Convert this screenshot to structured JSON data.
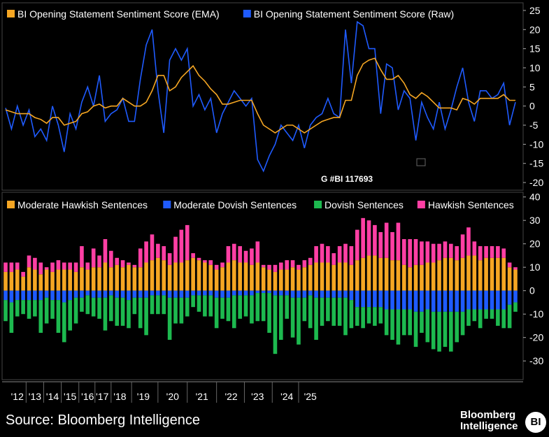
{
  "chart_data": [
    {
      "type": "line",
      "series": [
        {
          "name": "BI Opening Statement Sentiment Score (EMA)",
          "color": "#f5a623",
          "values": [
            -1,
            -1.5,
            -2,
            -2,
            -2,
            -3,
            -3.5,
            -4.5,
            -3,
            -3,
            -5,
            -4.5,
            -4,
            -2,
            -1.5,
            0,
            0.5,
            -0.5,
            0,
            0,
            2,
            1,
            0,
            0,
            1,
            4,
            8,
            8,
            4,
            5,
            7.5,
            9,
            10.5,
            8,
            6.5,
            4.5,
            3,
            0.5,
            0.5,
            1,
            1.5,
            1.5,
            1.5,
            -2,
            -5,
            -6,
            -7,
            -6,
            -5,
            -5,
            -6,
            -7,
            -6,
            -5,
            -4,
            -3.5,
            -3,
            -3,
            1.5,
            1.5,
            8,
            11,
            12,
            12.5,
            9.5,
            7,
            7,
            8,
            6,
            3,
            2,
            3.5,
            2.5,
            1,
            -0.5,
            -0.5,
            -0.5,
            -1,
            2,
            1.5,
            0.5,
            2,
            2,
            2,
            2,
            3,
            1.5,
            1.5
          ]
        },
        {
          "name": "BI Opening Statement Sentiment Score (Raw)",
          "color": "#1f5bff",
          "values": [
            -0.5,
            -6,
            0,
            -5,
            -1,
            -8,
            -6,
            -9,
            0,
            -5,
            -12,
            -2,
            -6,
            1,
            5,
            0,
            8,
            -4,
            -2,
            -1,
            2,
            -4,
            -4,
            7,
            16,
            20,
            4,
            -7,
            12,
            15,
            12,
            15,
            0,
            3,
            -1,
            2,
            -7,
            -2,
            1,
            4,
            2,
            0,
            2,
            -14,
            -17,
            -13,
            -10,
            -5,
            -7,
            -9,
            -5,
            -11,
            -5,
            -3,
            -2,
            2,
            -2,
            -3,
            20,
            6,
            22,
            21,
            15,
            15,
            -2,
            11,
            10,
            -1,
            4,
            2,
            -9,
            1,
            -3,
            -6,
            1,
            -6,
            -1,
            5,
            10,
            1,
            -4,
            4,
            4,
            2,
            3,
            6,
            -5,
            1
          ]
        }
      ],
      "yticks": [
        25,
        20,
        15,
        10,
        5,
        0,
        -5,
        -10,
        -15,
        -20
      ],
      "ylim": [
        -22,
        27
      ],
      "annotation": "G #BI 117693",
      "xlabel": "",
      "ylabel": ""
    },
    {
      "type": "bar",
      "stacked": true,
      "series": [
        {
          "name": "Moderate Hawkish Sentences",
          "color": "#f5a623",
          "values": [
            8,
            8,
            9,
            6,
            10,
            9,
            7,
            9,
            8,
            9,
            9,
            9,
            8,
            10,
            9,
            10,
            10,
            12,
            10,
            11,
            10,
            11,
            10,
            10,
            12,
            13,
            14,
            13,
            11,
            12,
            12,
            13,
            14,
            13,
            12,
            11,
            9,
            10,
            12,
            13,
            12,
            12,
            11,
            12,
            10,
            9,
            8,
            9,
            9,
            10,
            9,
            10,
            11,
            12,
            12,
            12,
            11,
            12,
            12,
            11,
            13,
            14,
            15,
            15,
            14,
            14,
            13,
            13,
            11,
            10,
            11,
            11,
            12,
            12,
            13,
            14,
            14,
            13,
            14,
            15,
            15,
            13,
            14,
            14,
            14,
            14,
            10,
            9
          ]
        },
        {
          "name": "Hawkish Sentences",
          "color": "#ff3fa4",
          "values": [
            4,
            4,
            3,
            2,
            5,
            5,
            5,
            1,
            4,
            4,
            3,
            3,
            4,
            9,
            3,
            8,
            5,
            10,
            7,
            3,
            3,
            1,
            1,
            8,
            9,
            11,
            6,
            6,
            5,
            11,
            14,
            15,
            2,
            1,
            1,
            2,
            2,
            2,
            7,
            7,
            7,
            5,
            7,
            9,
            1,
            2,
            3,
            3,
            4,
            3,
            2,
            3,
            3,
            7,
            8,
            7,
            5,
            7,
            8,
            8,
            13,
            17,
            15,
            13,
            11,
            15,
            12,
            16,
            11,
            12,
            11,
            10,
            9,
            8,
            7,
            7,
            6,
            6,
            10,
            12,
            6,
            6,
            5,
            5,
            5,
            4,
            2,
            1
          ]
        },
        {
          "name": "Moderate Dovish Sentences",
          "color": "#1f5bff",
          "values": [
            -4,
            -5,
            -4,
            -4,
            -4,
            -4,
            -4,
            -3,
            -4,
            -4,
            -5,
            -4,
            -3,
            -3,
            -2,
            -3,
            -3,
            -3,
            -2,
            -3,
            -3,
            -4,
            -3,
            -3,
            -3,
            -2,
            -2,
            -2,
            -3,
            -3,
            -3,
            -3,
            -2,
            -2,
            -2,
            -2,
            -3,
            -3,
            -3,
            -2,
            -2,
            -2,
            -2,
            -1,
            -1,
            -1,
            -2,
            -2,
            -2,
            -3,
            -3,
            -3,
            -2,
            -3,
            -3,
            -3,
            -3,
            -3,
            -3,
            -4,
            -7,
            -7,
            -7,
            -7,
            -7,
            -8,
            -8,
            -8,
            -8,
            -8,
            -9,
            -9,
            -8,
            -9,
            -9,
            -9,
            -9,
            -9,
            -9,
            -8,
            -8,
            -8,
            -8,
            -8,
            -8,
            -8,
            -6,
            -5
          ]
        },
        {
          "name": "Dovish Sentences",
          "color": "#1db94f",
          "values": [
            -9,
            -13,
            -7,
            -6,
            -8,
            -7,
            -14,
            -11,
            -8,
            -14,
            -17,
            -13,
            -11,
            -6,
            -8,
            -8,
            -9,
            -14,
            -11,
            -12,
            -12,
            -12,
            -7,
            -13,
            -16,
            -8,
            -8,
            -8,
            -18,
            -11,
            -11,
            -8,
            -5,
            -7,
            -9,
            -9,
            -13,
            -9,
            -10,
            -14,
            -10,
            -9,
            -12,
            -12,
            -12,
            -17,
            -25,
            -19,
            -10,
            -17,
            -20,
            -10,
            -14,
            -18,
            -12,
            -10,
            -12,
            -12,
            -16,
            -12,
            -8,
            -9,
            -7,
            -8,
            -7,
            -11,
            -13,
            -15,
            -11,
            -11,
            -15,
            -9,
            -14,
            -16,
            -17,
            -15,
            -17,
            -13,
            -10,
            -7,
            -5,
            -8,
            -4,
            -4,
            -7,
            -8,
            -10,
            -4
          ]
        }
      ],
      "yticks": [
        40,
        30,
        20,
        10,
        0,
        -10,
        -20,
        -30
      ],
      "ylim": [
        -38,
        42
      ],
      "xlabel": "",
      "ylabel": ""
    }
  ],
  "xaxis": {
    "categories": [
      "'12",
      "'13",
      "'14",
      "'15",
      "'16",
      "'17",
      "'18",
      "'19",
      "'20",
      "'21",
      "'22",
      "'23",
      "'24",
      "'25"
    ],
    "cat_index": [
      4,
      10,
      16,
      22,
      28,
      33,
      39,
      47,
      57,
      67,
      77,
      86,
      96,
      104
    ],
    "n_points": 88
  },
  "footer": {
    "source": "Source: Bloomberg Intelligence",
    "brand_line1": "Bloomberg",
    "brand_line2": "Intelligence",
    "badge": "BI"
  }
}
